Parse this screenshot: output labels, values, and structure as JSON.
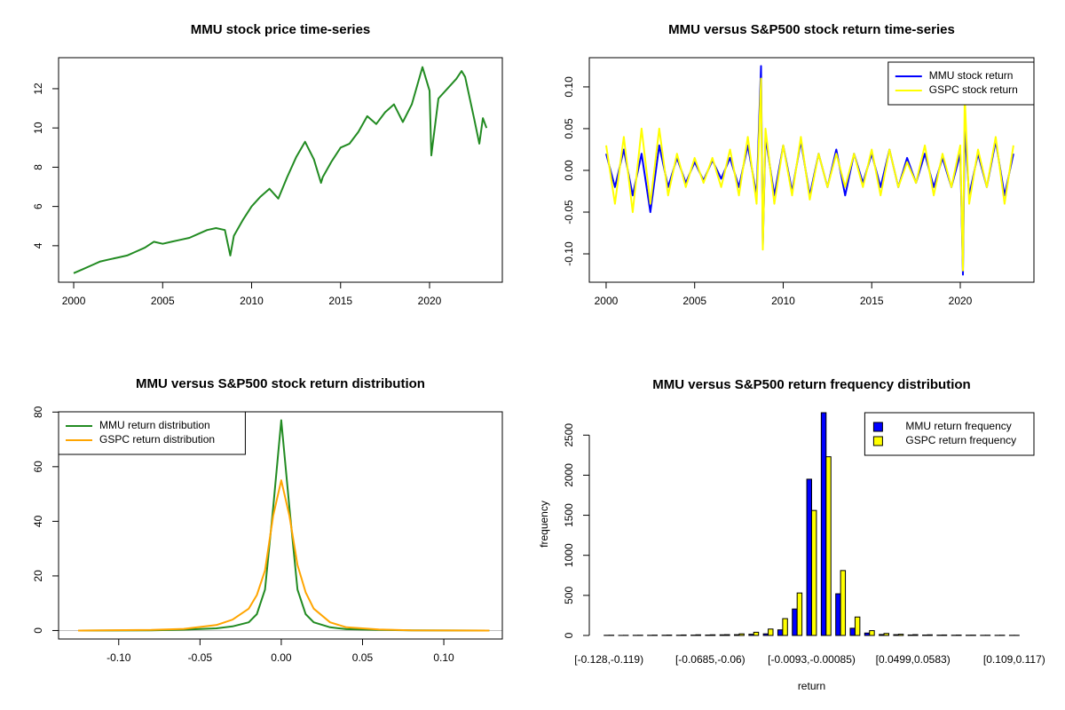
{
  "chart_data": [
    {
      "type": "line",
      "title": "MMU stock price time-series",
      "color": "#228b22",
      "x": [
        2000,
        2000.5,
        2001,
        2001.5,
        2002,
        2002.5,
        2003,
        2003.5,
        2004,
        2004.5,
        2005,
        2005.5,
        2006,
        2006.5,
        2007,
        2007.5,
        2008,
        2008.5,
        2008.8,
        2009,
        2009.5,
        2010,
        2010.5,
        2011,
        2011.5,
        2012,
        2012.5,
        2013,
        2013.5,
        2013.9,
        2014,
        2014.5,
        2015,
        2015.5,
        2016,
        2016.5,
        2017,
        2017.5,
        2018,
        2018.5,
        2019,
        2019.6,
        2020,
        2020.1,
        2020.5,
        2021,
        2021.5,
        2021.8,
        2022,
        2022.5,
        2022.8,
        2023,
        2023.2
      ],
      "values": [
        2.6,
        2.8,
        3.0,
        3.2,
        3.3,
        3.4,
        3.5,
        3.7,
        3.9,
        4.2,
        4.1,
        4.2,
        4.3,
        4.4,
        4.6,
        4.8,
        4.9,
        4.8,
        3.5,
        4.5,
        5.3,
        6.0,
        6.5,
        6.9,
        6.4,
        7.5,
        8.5,
        9.3,
        8.4,
        7.2,
        7.5,
        8.3,
        9.0,
        9.2,
        9.8,
        10.6,
        10.2,
        10.8,
        11.2,
        10.3,
        11.2,
        13.1,
        11.9,
        8.6,
        11.5,
        12.0,
        12.5,
        12.9,
        12.6,
        10.5,
        9.2,
        10.5,
        10.0
      ],
      "xlim": [
        1999.15,
        2024.09
      ],
      "xticks": [
        2000,
        2005,
        2010,
        2015,
        2020
      ],
      "ylim": [
        2.14,
        13.58
      ],
      "yticks": [
        4,
        6,
        8,
        10,
        12
      ]
    },
    {
      "type": "line",
      "title": "MMU versus S&P500 stock return time-series",
      "legend": "topright",
      "x": [
        2000,
        2000.5,
        2001,
        2001.5,
        2002,
        2002.5,
        2003,
        2003.5,
        2004,
        2004.5,
        2005,
        2005.5,
        2006,
        2006.5,
        2007,
        2007.5,
        2008,
        2008.5,
        2008.75,
        2008.85,
        2009,
        2009.5,
        2010,
        2010.5,
        2011,
        2011.5,
        2012,
        2012.5,
        2013,
        2013.5,
        2014,
        2014.5,
        2015,
        2015.5,
        2016,
        2016.5,
        2017,
        2017.5,
        2018,
        2018.5,
        2019,
        2019.5,
        2020,
        2020.15,
        2020.25,
        2020.5,
        2021,
        2021.5,
        2022,
        2022.5,
        2023
      ],
      "series": [
        {
          "name": "MMU stock return",
          "color": "#0000ff",
          "values": [
            0.02,
            -0.02,
            0.025,
            -0.03,
            0.02,
            -0.05,
            0.03,
            -0.02,
            0.015,
            -0.015,
            0.01,
            -0.012,
            0.012,
            -0.01,
            0.015,
            -0.02,
            0.03,
            -0.03,
            0.125,
            -0.09,
            0.04,
            -0.03,
            0.03,
            -0.025,
            0.035,
            -0.03,
            0.02,
            -0.02,
            0.025,
            -0.03,
            0.02,
            -0.015,
            0.02,
            -0.02,
            0.025,
            -0.02,
            0.015,
            -0.015,
            0.02,
            -0.02,
            0.015,
            -0.02,
            0.02,
            -0.125,
            0.05,
            -0.03,
            0.02,
            -0.02,
            0.035,
            -0.03,
            0.02
          ]
        },
        {
          "name": "GSPC stock return",
          "color": "#ffff00",
          "values": [
            0.03,
            -0.04,
            0.04,
            -0.05,
            0.05,
            -0.04,
            0.05,
            -0.03,
            0.02,
            -0.02,
            0.015,
            -0.015,
            0.015,
            -0.02,
            0.025,
            -0.03,
            0.04,
            -0.04,
            0.11,
            -0.095,
            0.05,
            -0.04,
            0.03,
            -0.03,
            0.04,
            -0.035,
            0.02,
            -0.02,
            0.02,
            -0.02,
            0.02,
            -0.02,
            0.025,
            -0.03,
            0.025,
            -0.02,
            0.01,
            -0.015,
            0.03,
            -0.03,
            0.02,
            -0.02,
            0.03,
            -0.12,
            0.09,
            -0.04,
            0.025,
            -0.02,
            0.04,
            -0.04,
            0.03
          ]
        }
      ],
      "xlim": [
        1999.05,
        2024.16
      ],
      "xticks": [
        2000,
        2005,
        2010,
        2015,
        2020
      ],
      "ylim": [
        -0.134,
        0.135
      ],
      "yticks": [
        {
          "value": -0.1,
          "label": "-0.10"
        },
        {
          "value": -0.05,
          "label": "-0.05"
        },
        {
          "value": 0,
          "label": "0.00"
        },
        {
          "value": 0.05,
          "label": "0.05"
        },
        {
          "value": 0.1,
          "label": "0.10"
        }
      ]
    },
    {
      "type": "line",
      "title": "MMU versus S&P500 stock return distribution",
      "legend": "topleft",
      "zero_line": true,
      "x": [
        -0.125,
        -0.08,
        -0.06,
        -0.04,
        -0.03,
        -0.02,
        -0.015,
        -0.01,
        -0.005,
        0,
        0.005,
        0.01,
        0.015,
        0.02,
        0.03,
        0.04,
        0.06,
        0.08,
        0.128
      ],
      "series": [
        {
          "name": "MMU return distribution",
          "color": "#228b22",
          "values": [
            0,
            0.1,
            0.3,
            0.8,
            1.5,
            3,
            6,
            15,
            45,
            77,
            45,
            15,
            6,
            3,
            1.2,
            0.5,
            0.2,
            0.1,
            0
          ]
        },
        {
          "name": "GSPC return distribution",
          "color": "#ffa500",
          "values": [
            0,
            0.2,
            0.6,
            2,
            4,
            8,
            13,
            22,
            42,
            55,
            42,
            24,
            14,
            8,
            3,
            1.2,
            0.4,
            0.1,
            0
          ]
        }
      ],
      "xlim": [
        -0.137,
        0.136
      ],
      "xticks": [
        {
          "value": -0.1,
          "label": "-0.10"
        },
        {
          "value": -0.05,
          "label": "-0.05"
        },
        {
          "value": 0,
          "label": "0.00"
        },
        {
          "value": 0.05,
          "label": "0.05"
        },
        {
          "value": 0.1,
          "label": "0.10"
        }
      ],
      "ylim": [
        -3.1,
        80.1
      ],
      "yticks": [
        0,
        20,
        40,
        60,
        80
      ]
    },
    {
      "type": "bar",
      "title": "MMU versus S&P500 return frequency distribution",
      "legend": "topright",
      "x_label": "return",
      "y_label": "frequency",
      "categories": [
        "[-0.128,-0.119)",
        null,
        null,
        null,
        null,
        null,
        null,
        "[-0.0685,-0.06)",
        null,
        null,
        null,
        null,
        null,
        null,
        "[-0.0093,-0.00085)",
        null,
        null,
        null,
        null,
        null,
        null,
        "[0.0499,0.0583)",
        null,
        null,
        null,
        null,
        null,
        null,
        "[0.109,0.117)"
      ],
      "series": [
        {
          "name": "MMU return frequency",
          "color": "#0000ff",
          "values": [
            2,
            1,
            2,
            2,
            3,
            3,
            4,
            5,
            8,
            10,
            15,
            20,
            70,
            330,
            1950,
            2780,
            520,
            90,
            30,
            12,
            10,
            6,
            5,
            4,
            3,
            3,
            2,
            2,
            2
          ]
        },
        {
          "name": "GSPC return frequency",
          "color": "#ffff00",
          "values": [
            3,
            2,
            3,
            4,
            5,
            6,
            8,
            8,
            10,
            20,
            40,
            80,
            210,
            530,
            1560,
            2230,
            810,
            230,
            60,
            25,
            15,
            10,
            8,
            6,
            5,
            4,
            3,
            3,
            2
          ]
        }
      ],
      "ylim": [
        0,
        2780
      ],
      "yticks": [
        0,
        500,
        1000,
        1500,
        2000,
        2500
      ]
    }
  ]
}
